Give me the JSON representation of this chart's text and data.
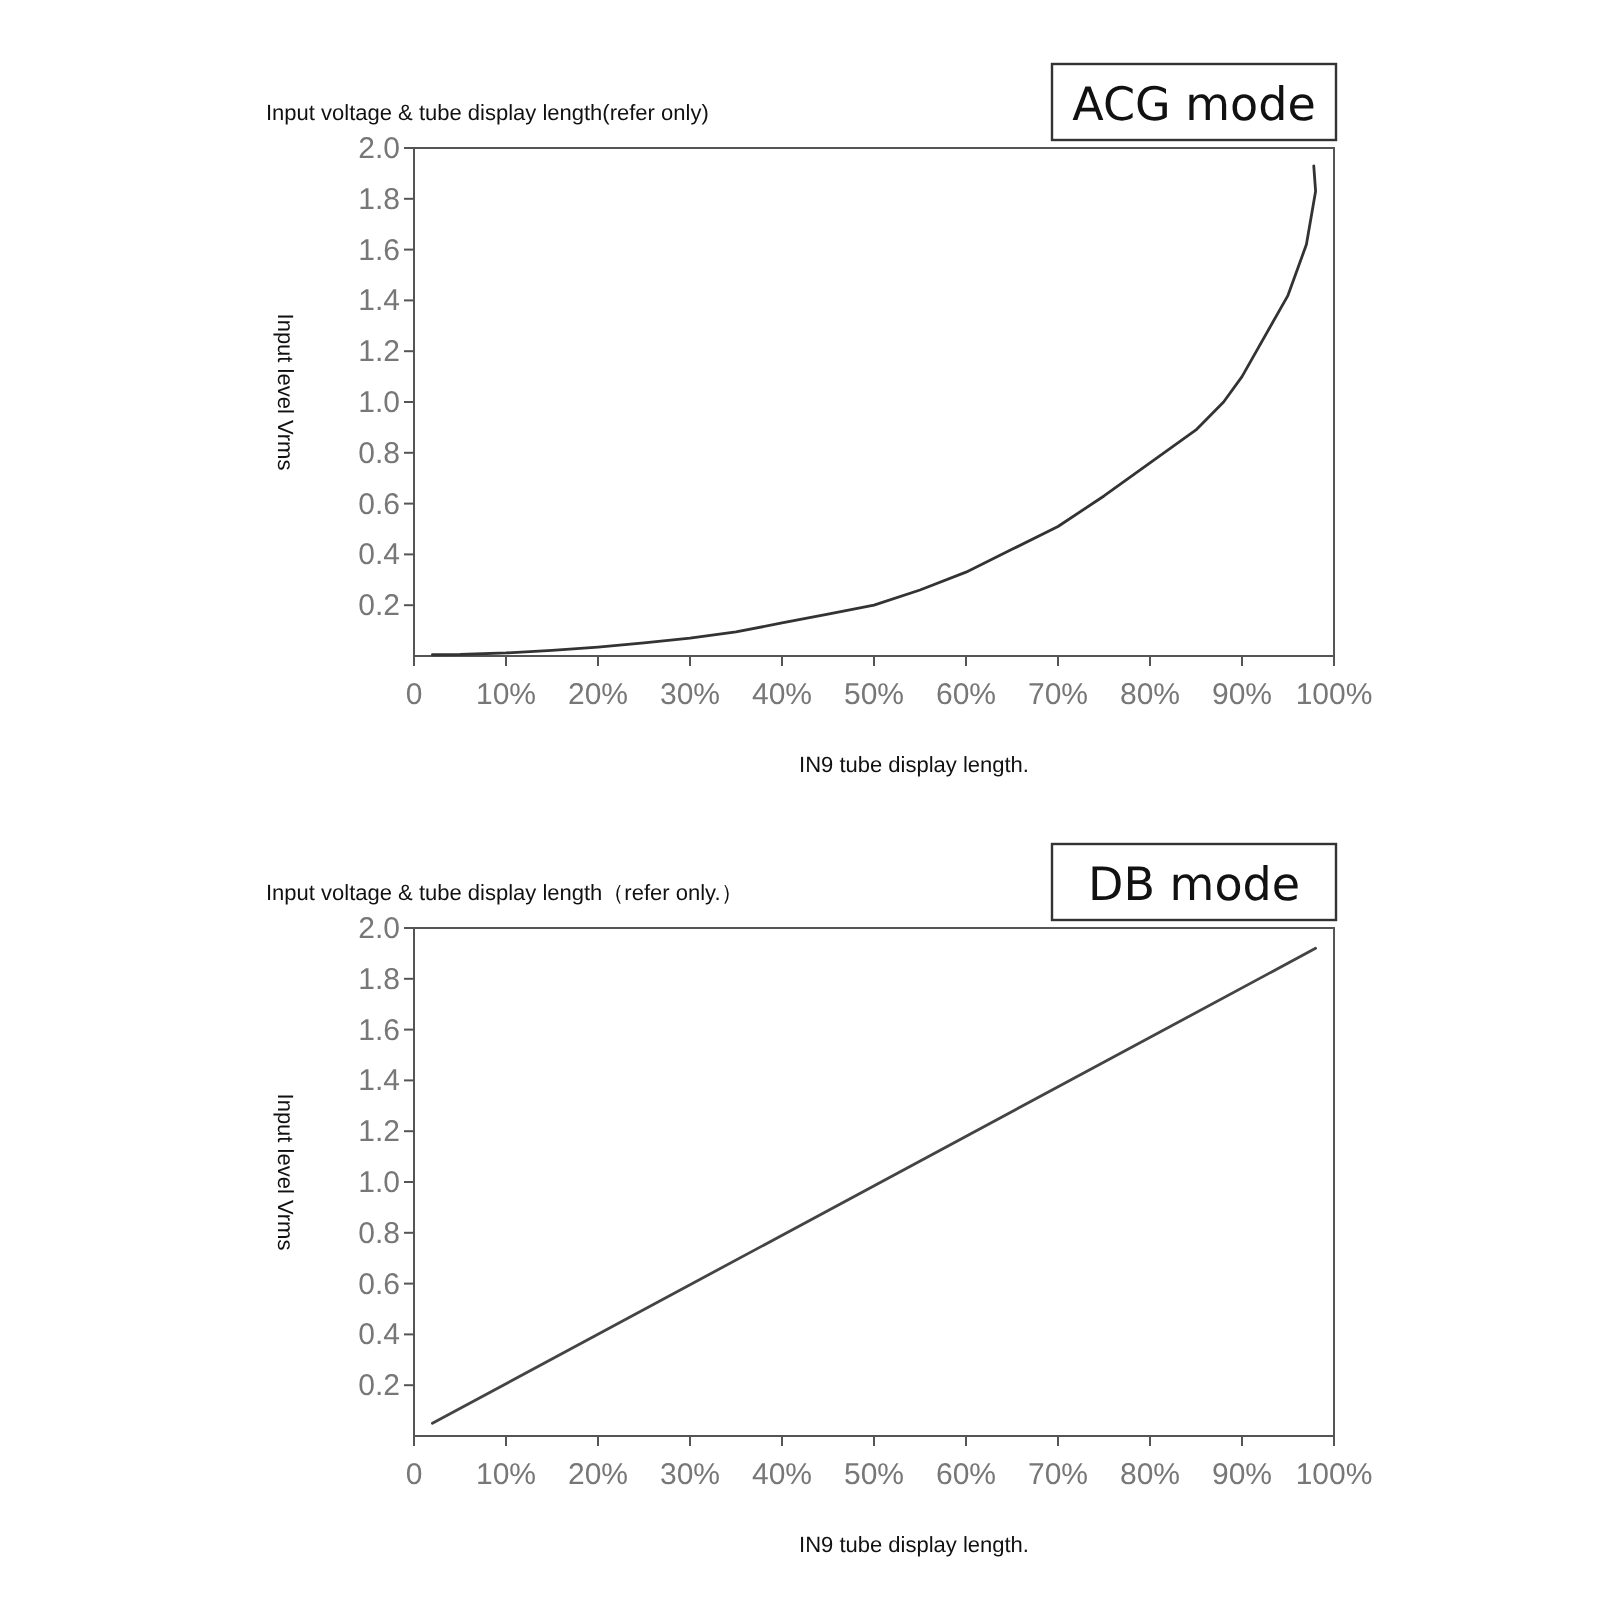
{
  "chart_data": [
    {
      "type": "line",
      "title": "Input voltage & tube display length(refer only)",
      "xlabel": "IN9 tube display length.",
      "ylabel": "Input level Vrms",
      "annotations": [
        "ACG mode"
      ],
      "x": [
        2,
        5,
        10,
        15,
        20,
        25,
        30,
        35,
        40,
        45,
        50,
        55,
        60,
        65,
        70,
        75,
        80,
        85,
        88,
        90,
        95,
        97,
        98,
        97.8
      ],
      "series": [
        {
          "color": "#333333",
          "values": [
            0.005,
            0.006,
            0.012,
            0.022,
            0.035,
            0.052,
            0.07,
            0.095,
            0.13,
            0.165,
            0.2,
            0.26,
            0.33,
            0.42,
            0.51,
            0.63,
            0.76,
            0.89,
            1.0,
            1.1,
            1.42,
            1.62,
            1.83,
            1.93
          ]
        }
      ],
      "xlim": [
        0,
        100
      ],
      "xticks": [
        {
          "value": 0,
          "label": "0"
        },
        {
          "value": 10,
          "label": "10%"
        },
        {
          "value": 20,
          "label": "20%"
        },
        {
          "value": 30,
          "label": "30%"
        },
        {
          "value": 40,
          "label": "40%"
        },
        {
          "value": 50,
          "label": "50%"
        },
        {
          "value": 60,
          "label": "60%"
        },
        {
          "value": 70,
          "label": "70%"
        },
        {
          "value": 80,
          "label": "80%"
        },
        {
          "value": 90,
          "label": "90%"
        },
        {
          "value": 100,
          "label": "100%"
        }
      ],
      "ylim": [
        0,
        2
      ],
      "yticks": [
        {
          "value": 0.2,
          "label": "0.2"
        },
        {
          "value": 0.4,
          "label": "0.4"
        },
        {
          "value": 0.6,
          "label": "0.6"
        },
        {
          "value": 0.8,
          "label": "0.8"
        },
        {
          "value": 1,
          "label": "1.0"
        },
        {
          "value": 1.2,
          "label": "1.2"
        },
        {
          "value": 1.4,
          "label": "1.4"
        },
        {
          "value": 1.6,
          "label": "1.6"
        },
        {
          "value": 1.8,
          "label": "1.8"
        },
        {
          "value": 2,
          "label": "2.0"
        }
      ]
    },
    {
      "type": "line",
      "title": "Input voltage & tube display length（refer only.）",
      "xlabel": "IN9 tube display length.",
      "ylabel": "Input level Vrms",
      "annotations": [
        "DB mode"
      ],
      "x": [
        2,
        98
      ],
      "series": [
        {
          "color": "#444444",
          "values": [
            0.05,
            1.92
          ]
        }
      ],
      "xlim": [
        0,
        100
      ],
      "xticks": [
        {
          "value": 0,
          "label": "0"
        },
        {
          "value": 10,
          "label": "10%"
        },
        {
          "value": 20,
          "label": "20%"
        },
        {
          "value": 30,
          "label": "30%"
        },
        {
          "value": 40,
          "label": "40%"
        },
        {
          "value": 50,
          "label": "50%"
        },
        {
          "value": 60,
          "label": "60%"
        },
        {
          "value": 70,
          "label": "70%"
        },
        {
          "value": 80,
          "label": "80%"
        },
        {
          "value": 90,
          "label": "90%"
        },
        {
          "value": 100,
          "label": "100%"
        }
      ],
      "ylim": [
        0,
        2
      ],
      "yticks": [
        {
          "value": 0.2,
          "label": "0.2"
        },
        {
          "value": 0.4,
          "label": "0.4"
        },
        {
          "value": 0.6,
          "label": "0.6"
        },
        {
          "value": 0.8,
          "label": "0.8"
        },
        {
          "value": 1,
          "label": "1.0"
        },
        {
          "value": 1.2,
          "label": "1.2"
        },
        {
          "value": 1.4,
          "label": "1.4"
        },
        {
          "value": 1.6,
          "label": "1.6"
        },
        {
          "value": 1.8,
          "label": "1.8"
        },
        {
          "value": 2,
          "label": "2.0"
        }
      ]
    }
  ]
}
